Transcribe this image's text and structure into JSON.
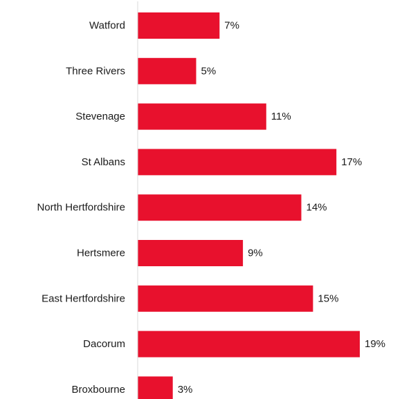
{
  "chart_data": {
    "type": "bar",
    "orientation": "horizontal",
    "categories": [
      "Watford",
      "Three Rivers",
      "Stevenage",
      "St Albans",
      "North Hertfordshire",
      "Hertsmere",
      "East Hertfordshire",
      "Dacorum",
      "Broxbourne"
    ],
    "values": [
      7,
      5,
      11,
      17,
      14,
      9,
      15,
      19,
      3
    ],
    "value_labels": [
      "7%",
      "5%",
      "11%",
      "17%",
      "14%",
      "9%",
      "15%",
      "19%",
      "3%"
    ],
    "unit": "%",
    "xlim": [
      0,
      19
    ],
    "grid": false,
    "legend": "none",
    "bar_color": "#E8112D",
    "axis_color": "#d9d9d9"
  }
}
